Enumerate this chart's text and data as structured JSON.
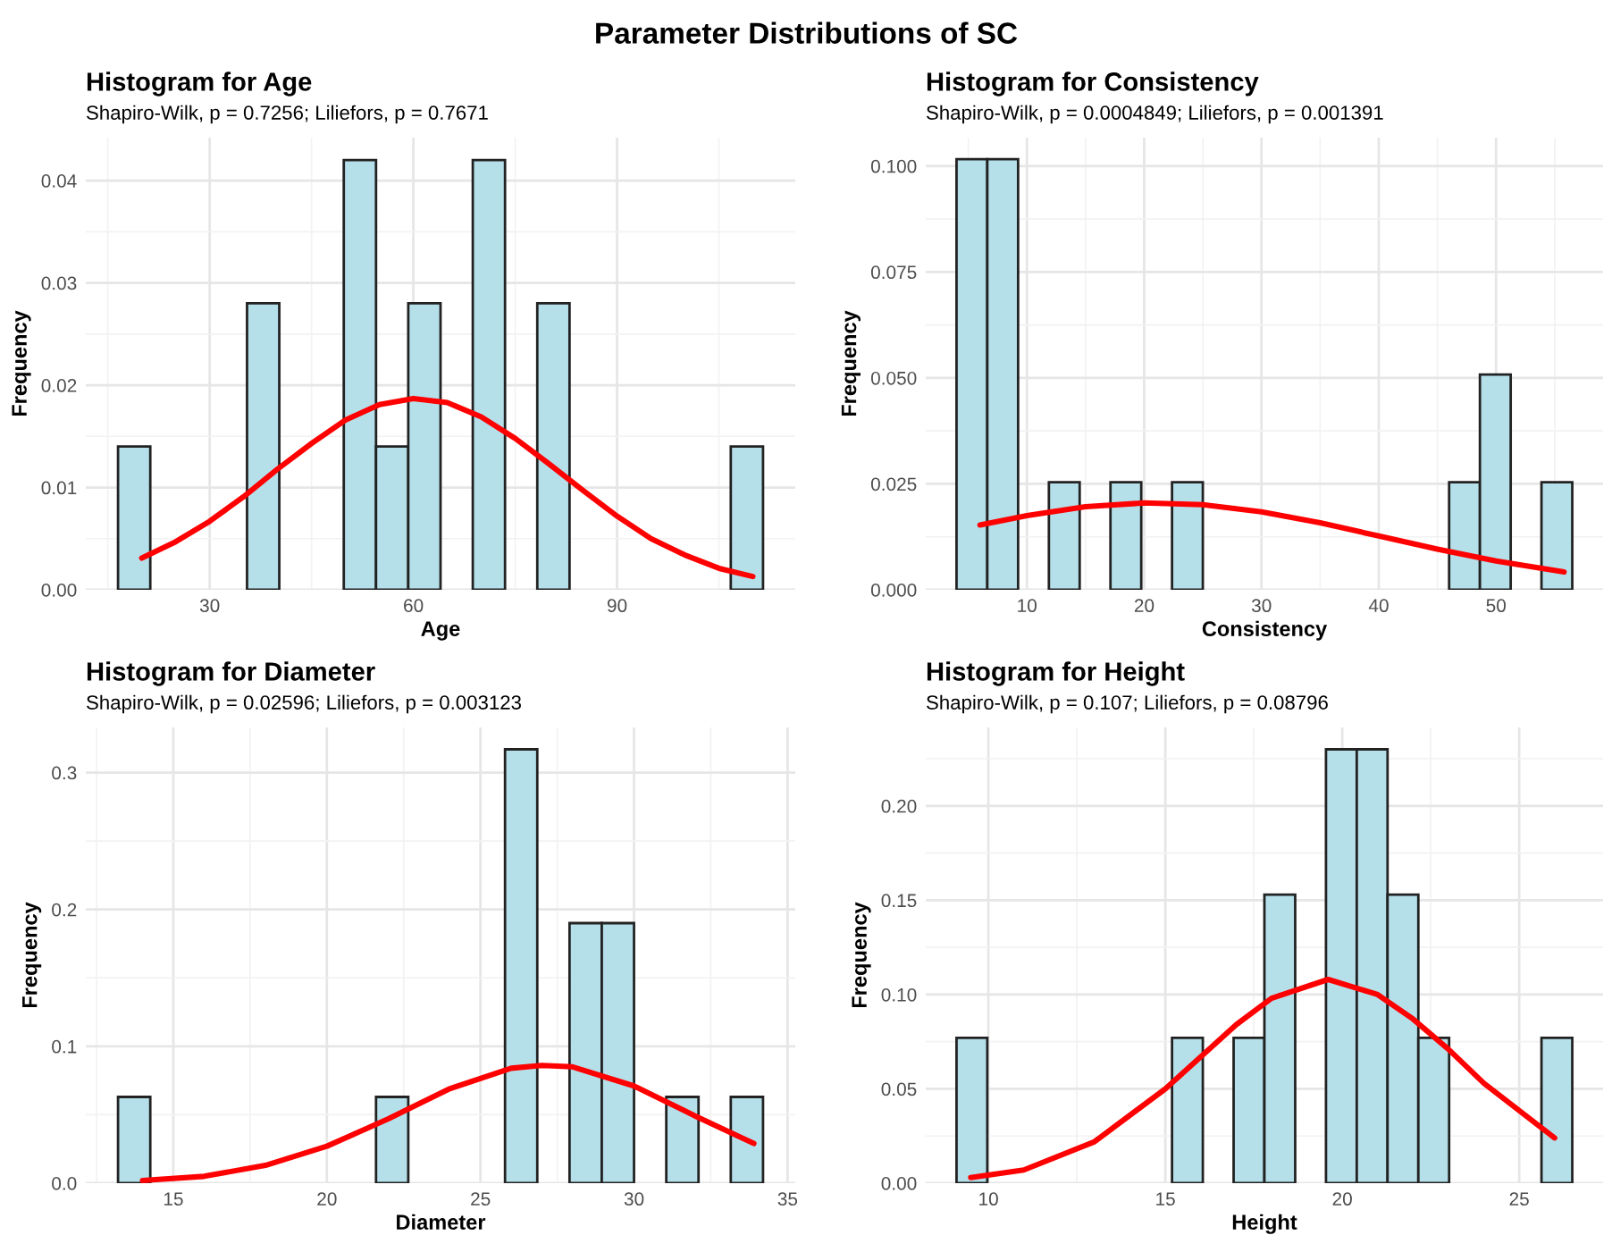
{
  "chart_data": [
    {
      "type": "histogram",
      "title": "Histogram for Age",
      "subtitle": "Shapiro-Wilk, p = 0.7256; Liliefors, p = 0.7671",
      "xlabel": "Age",
      "ylabel": "Frequency",
      "annotations": [
        "Parameter Distributions of SC"
      ],
      "grid": true,
      "xlim": [
        11.75,
        116.25
      ],
      "ylim": [
        0,
        0.0442
      ],
      "xticks": [
        {
          "value": 15,
          "label": null
        },
        30,
        {
          "value": 45,
          "label": null
        },
        60,
        {
          "value": 75,
          "label": null
        },
        90,
        {
          "value": 105,
          "label": null
        }
      ],
      "yticks": [
        {
          "value": 0,
          "label": "0.00"
        },
        {
          "value": 0.005,
          "label": null
        },
        {
          "value": 0.01,
          "label": "0.01"
        },
        {
          "value": 0.015,
          "label": null
        },
        {
          "value": 0.02,
          "label": "0.02"
        },
        {
          "value": 0.025,
          "label": null
        },
        {
          "value": 0.03,
          "label": "0.03"
        },
        {
          "value": 0.035,
          "label": null
        },
        {
          "value": 0.04,
          "label": "0.04"
        }
      ],
      "series": [
        {
          "type": "histogram",
          "color": "#b5e0ea",
          "bins": [
            16.5,
            21.25,
            26,
            30.75,
            35.5,
            40.25,
            45,
            49.75,
            54.5,
            59.25,
            64,
            68.75,
            73.5,
            78.25,
            83,
            87.75,
            92.5,
            97.25,
            102,
            106.75,
            111.5
          ],
          "values": [
            0.014,
            0,
            0,
            0,
            0.028,
            0,
            0,
            0.042,
            0.014,
            0.028,
            0,
            0.042,
            0,
            0.028,
            0,
            0,
            0,
            0,
            0,
            0.014
          ]
        },
        {
          "type": "line",
          "color": "#ff0000",
          "x": [
            20,
            25,
            30,
            35,
            40,
            45,
            50,
            55,
            60,
            65,
            70,
            75,
            80,
            85,
            90,
            95,
            100,
            105,
            110
          ],
          "values": [
            0.0031,
            0.0047,
            0.0067,
            0.0091,
            0.0118,
            0.0143,
            0.0166,
            0.0181,
            0.0187,
            0.0183,
            0.0169,
            0.0148,
            0.0123,
            0.0097,
            0.0072,
            0.005,
            0.0034,
            0.0021,
            0.0013
          ]
        }
      ]
    },
    {
      "type": "histogram",
      "title": "Histogram for Consistency",
      "subtitle": "Shapiro-Wilk, p = 0.0004849; Liliefors, p = 0.001391",
      "xlabel": "Consistency",
      "ylabel": "Frequency",
      "grid": true,
      "xlim": [
        1.375,
        59.125
      ],
      "ylim": [
        0,
        0.1067
      ],
      "xticks": [
        {
          "value": 5,
          "label": null
        },
        10,
        {
          "value": 15,
          "label": null
        },
        20,
        {
          "value": 25,
          "label": null
        },
        30,
        {
          "value": 35,
          "label": null
        },
        40,
        {
          "value": 45,
          "label": null
        },
        50,
        {
          "value": 55,
          "label": null
        }
      ],
      "yticks": [
        {
          "value": 0,
          "label": "0.000"
        },
        {
          "value": 0.0125,
          "label": null
        },
        {
          "value": 0.025,
          "label": "0.025"
        },
        {
          "value": 0.0375,
          "label": null
        },
        {
          "value": 0.05,
          "label": "0.050"
        },
        {
          "value": 0.0625,
          "label": null
        },
        {
          "value": 0.075,
          "label": "0.075"
        },
        {
          "value": 0.0875,
          "label": null
        },
        {
          "value": 0.1,
          "label": "0.100"
        }
      ],
      "series": [
        {
          "type": "histogram",
          "color": "#b5e0ea",
          "bins": [
            4,
            6.625,
            9.25,
            11.875,
            14.5,
            17.125,
            19.75,
            22.375,
            25,
            27.625,
            30.25,
            32.875,
            35.5,
            38.125,
            40.75,
            43.375,
            46,
            48.625,
            51.25,
            53.875,
            56.5
          ],
          "values": [
            0.1016,
            0.1016,
            0,
            0.0254,
            0,
            0.0254,
            0,
            0.0254,
            0,
            0,
            0,
            0,
            0,
            0,
            0,
            0,
            0.0254,
            0.0508,
            0,
            0.0254
          ]
        },
        {
          "type": "line",
          "color": "#ff0000",
          "x": [
            6,
            10,
            15,
            20,
            25,
            30,
            35,
            40,
            45,
            50,
            55.8
          ],
          "values": [
            0.0153,
            0.0175,
            0.0196,
            0.0205,
            0.0201,
            0.0184,
            0.0158,
            0.0127,
            0.0096,
            0.0068,
            0.0042
          ]
        }
      ]
    },
    {
      "type": "histogram",
      "title": "Histogram for Diameter",
      "subtitle": "Shapiro-Wilk, p = 0.02596; Liliefors, p = 0.003123",
      "xlabel": "Diameter",
      "ylabel": "Frequency",
      "grid": true,
      "xlim": [
        12.15,
        35.25
      ],
      "ylim": [
        0,
        0.333
      ],
      "xticks": [
        {
          "value": 12.5,
          "label": null
        },
        15,
        {
          "value": 17.5,
          "label": null
        },
        20,
        {
          "value": 22.5,
          "label": null
        },
        25,
        {
          "value": 27.5,
          "label": null
        },
        30,
        {
          "value": 32.5,
          "label": null
        },
        35
      ],
      "yticks": [
        {
          "value": 0,
          "label": "0.0"
        },
        {
          "value": 0.05,
          "label": null
        },
        {
          "value": 0.1,
          "label": "0.1"
        },
        {
          "value": 0.15,
          "label": null
        },
        {
          "value": 0.2,
          "label": "0.2"
        },
        {
          "value": 0.25,
          "label": null
        },
        {
          "value": 0.3,
          "label": "0.3"
        }
      ],
      "series": [
        {
          "type": "histogram",
          "color": "#b5e0ea",
          "bins": [
            13.2,
            14.25,
            15.3,
            16.35,
            17.4,
            18.45,
            19.5,
            20.55,
            21.6,
            22.65,
            23.7,
            24.75,
            25.8,
            26.85,
            27.9,
            28.95,
            30,
            31.05,
            32.1,
            33.15,
            34.2
          ],
          "values": [
            0.063,
            0,
            0,
            0,
            0,
            0,
            0,
            0,
            0.063,
            0,
            0,
            0,
            0.317,
            0,
            0.19,
            0.19,
            0,
            0.063,
            0,
            0.063
          ]
        },
        {
          "type": "line",
          "color": "#ff0000",
          "x": [
            14,
            16,
            18,
            20,
            22,
            24,
            26,
            27,
            28,
            30,
            32,
            33.9
          ],
          "values": [
            0.002,
            0.005,
            0.013,
            0.027,
            0.047,
            0.069,
            0.084,
            0.086,
            0.085,
            0.071,
            0.049,
            0.029
          ]
        }
      ]
    },
    {
      "type": "histogram",
      "title": "Histogram for Height",
      "subtitle": "Shapiro-Wilk, p = 0.107; Liliefors, p = 0.08796",
      "xlabel": "Height",
      "ylabel": "Frequency",
      "grid": true,
      "xlim": [
        8.23,
        27.37
      ],
      "ylim": [
        0,
        0.2416
      ],
      "xticks": [
        10,
        {
          "value": 12.5,
          "label": null
        },
        15,
        {
          "value": 17.5,
          "label": null
        },
        20,
        {
          "value": 22.5,
          "label": null
        },
        25
      ],
      "yticks": [
        {
          "value": 0,
          "label": "0.00"
        },
        {
          "value": 0.025,
          "label": null
        },
        {
          "value": 0.05,
          "label": "0.05"
        },
        {
          "value": 0.075,
          "label": null
        },
        {
          "value": 0.1,
          "label": "0.10"
        },
        {
          "value": 0.125,
          "label": null
        },
        {
          "value": 0.15,
          "label": "0.15"
        },
        {
          "value": 0.175,
          "label": null
        },
        {
          "value": 0.2,
          "label": "0.20"
        },
        {
          "value": 0.225,
          "label": null
        }
      ],
      "series": [
        {
          "type": "histogram",
          "color": "#b5e0ea",
          "bins": [
            9.1,
            9.97,
            10.84,
            11.71,
            12.58,
            13.45,
            14.32,
            15.19,
            16.06,
            16.93,
            17.8,
            18.67,
            19.54,
            20.41,
            21.28,
            22.15,
            23.02,
            23.89,
            24.76,
            25.63,
            26.5
          ],
          "values": [
            0.077,
            0,
            0,
            0,
            0,
            0,
            0,
            0.077,
            0,
            0.077,
            0.153,
            0,
            0.23,
            0.23,
            0.153,
            0.077,
            0,
            0,
            0,
            0.077
          ]
        },
        {
          "type": "line",
          "color": "#ff0000",
          "x": [
            9.5,
            11,
            13,
            15,
            17,
            18,
            19.6,
            21,
            22,
            23,
            24,
            26
          ],
          "values": [
            0.003,
            0.007,
            0.022,
            0.05,
            0.084,
            0.098,
            0.108,
            0.1,
            0.087,
            0.071,
            0.053,
            0.024
          ]
        }
      ]
    }
  ]
}
